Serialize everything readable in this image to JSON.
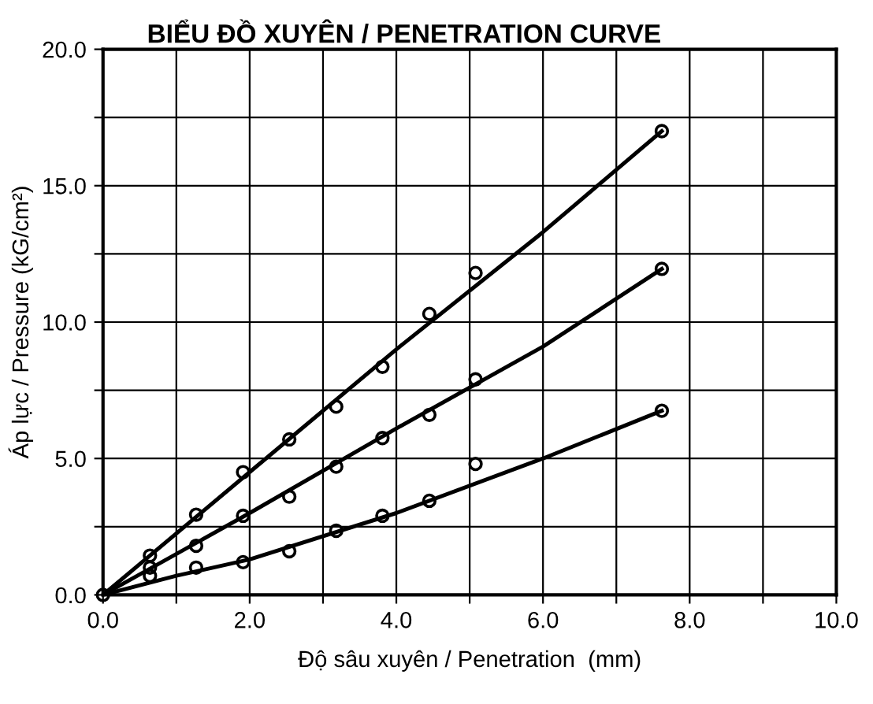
{
  "chart_data": {
    "type": "scatter",
    "title": "BIỂU ĐỒ XUYÊN / PENETRATION CURVE",
    "xlabel": "Độ sâu xuyên / Penetration  (mm)",
    "ylabel": "Áp lực / Pressure (kG/cm²)",
    "xlim": [
      0,
      10
    ],
    "ylim": [
      0,
      20
    ],
    "xticks": [
      {
        "value": 0,
        "label": "0.0"
      },
      {
        "value": 1,
        "label": null
      },
      {
        "value": 2,
        "label": "2.0"
      },
      {
        "value": 3,
        "label": null
      },
      {
        "value": 4,
        "label": "4.0"
      },
      {
        "value": 5,
        "label": null
      },
      {
        "value": 6,
        "label": "6.0"
      },
      {
        "value": 7,
        "label": null
      },
      {
        "value": 8,
        "label": "8.0"
      },
      {
        "value": 9,
        "label": null
      },
      {
        "value": 10,
        "label": "10.0"
      }
    ],
    "yticks": [
      {
        "value": 0,
        "label": "0.0"
      },
      {
        "value": 2.5,
        "label": null
      },
      {
        "value": 5,
        "label": "5.0"
      },
      {
        "value": 7.5,
        "label": null
      },
      {
        "value": 10,
        "label": "10.0"
      },
      {
        "value": 12.5,
        "label": null
      },
      {
        "value": 15,
        "label": "15.0"
      },
      {
        "value": 17.5,
        "label": null
      },
      {
        "value": 20,
        "label": "20.0"
      }
    ],
    "grid": true,
    "marker": "circle",
    "series": [
      {
        "color": "#000000",
        "x": [
          0,
          0.64,
          1.27,
          1.91,
          2.54,
          3.18,
          3.81,
          4.45,
          5.08,
          7.62
        ],
        "values": [
          0,
          1.44,
          2.94,
          4.5,
          5.7,
          6.9,
          8.36,
          10.3,
          11.8,
          17.0
        ]
      },
      {
        "color": "#000000",
        "x": [
          0.64,
          1.27,
          1.91,
          2.54,
          3.18,
          3.81,
          4.45,
          5.08,
          7.62
        ],
        "values": [
          1.0,
          1.8,
          2.9,
          3.6,
          4.7,
          5.75,
          6.6,
          7.9,
          11.95
        ]
      },
      {
        "color": "#000000",
        "x": [
          0.64,
          1.27,
          1.91,
          2.54,
          3.18,
          3.81,
          4.45,
          5.08,
          7.62
        ],
        "values": [
          0.7,
          1.0,
          1.2,
          1.6,
          2.35,
          2.9,
          3.45,
          4.8,
          6.75
        ]
      },
      {
        "type": "line",
        "marker": "none",
        "color": "#000000",
        "x": [
          0,
          2,
          4,
          6,
          7.62
        ],
        "values": [
          0,
          4.5,
          9.0,
          13.3,
          17.0
        ]
      },
      {
        "type": "line",
        "marker": "none",
        "color": "#000000",
        "x": [
          0,
          2,
          4,
          6,
          7.62
        ],
        "values": [
          0,
          3.0,
          6.1,
          9.1,
          11.95
        ]
      },
      {
        "type": "line",
        "marker": "none",
        "color": "#000000",
        "x": [
          0,
          1,
          2,
          4,
          6,
          7.62
        ],
        "values": [
          0,
          0.7,
          1.3,
          3.0,
          5.0,
          6.75
        ]
      }
    ]
  }
}
